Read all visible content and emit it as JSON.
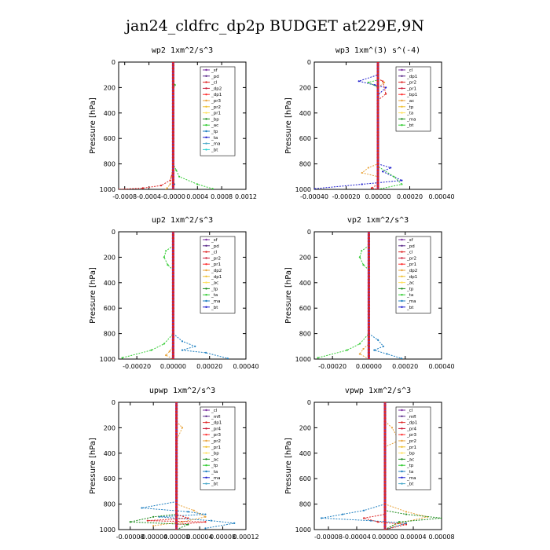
{
  "title": "jan24_cldfrc_dp2p  BUDGET at229E,9N",
  "chart_data": [
    {
      "type": "line",
      "title": "wp2  1xm^2/s^3",
      "ylabel": "Pressure [hPa]",
      "xlim": [
        -0.0009,
        0.0012
      ],
      "xticks": [
        -0.0008,
        -0.0004,
        0.0,
        0.0004,
        0.0008,
        0.0012
      ],
      "xticklabels": [
        "-0.0008",
        "-0.0004",
        "-0.0000",
        "0.0004",
        "0.0008",
        "0.0012"
      ],
      "ylim": [
        1000,
        0
      ],
      "yticks": [
        0,
        200,
        400,
        600,
        800,
        1000
      ],
      "legend": [
        "_sf",
        "_pd",
        "_cl",
        "_dp2",
        "_dp1",
        "_pr3",
        "_pr2",
        "_pr1",
        "_bp",
        "_ac",
        "_tp",
        "_ta",
        "_ma",
        "_bt"
      ],
      "series": [
        {
          "color": "#e8a33a",
          "points": [
            [
              0,
              0
            ],
            [
              0,
              800
            ],
            [
              -3e-05,
              900
            ],
            [
              -5e-05,
              960
            ],
            [
              -0.0001,
              990
            ],
            [
              -0.00012,
              1000
            ]
          ]
        },
        {
          "color": "#33cc33",
          "points": [
            [
              0,
              0
            ],
            [
              0,
              150
            ],
            [
              3e-05,
              180
            ],
            [
              0,
              220
            ],
            [
              0,
              800
            ],
            [
              5e-05,
              850
            ],
            [
              0.0001,
              900
            ],
            [
              0.0004,
              960
            ],
            [
              0.00065,
              995
            ]
          ]
        },
        {
          "color": "#dd2222",
          "points": [
            [
              0,
              0
            ],
            [
              0,
              850
            ],
            [
              -5e-05,
              930
            ],
            [
              -0.0002,
              970
            ],
            [
              -0.0005,
              990
            ],
            [
              -0.0009,
              1000
            ]
          ]
        },
        {
          "color": "#1e7fc0",
          "points": [
            [
              0,
              0
            ],
            [
              0,
              930
            ],
            [
              2e-05,
              960
            ],
            [
              0,
              1000
            ]
          ]
        },
        {
          "color": "#7b2fa0",
          "points": [
            [
              0,
              0
            ],
            [
              0,
              1000
            ]
          ]
        }
      ]
    },
    {
      "type": "line",
      "title": "wp3  1xm^(3) s^(-4)",
      "ylabel": "Pressure [hPa]",
      "xlim": [
        -0.0004,
        0.0004
      ],
      "xticks": [
        -0.0004,
        -0.0002,
        0.0,
        0.0002,
        0.0004
      ],
      "xticklabels": [
        "-0.00040",
        "-0.00020",
        "0.00000",
        "0.00020",
        "0.00040"
      ],
      "ylim": [
        1000,
        0
      ],
      "yticks": [
        0,
        200,
        400,
        600,
        800,
        1000
      ],
      "legend": [
        "_cl",
        "_dp1",
        "_pr2",
        "_pr1",
        "_bp1",
        "_ac",
        "_tp",
        "_ta",
        "_ma",
        "_bt"
      ],
      "series": [
        {
          "color": "#1e1ecc",
          "points": [
            [
              0,
              0
            ],
            [
              0,
              100
            ],
            [
              -0.00012,
              150
            ],
            [
              -2e-05,
              180
            ],
            [
              5e-05,
              200
            ],
            [
              0,
              260
            ],
            [
              0,
              800
            ],
            [
              8e-05,
              830
            ],
            [
              3e-05,
              860
            ],
            [
              0.00015,
              930
            ],
            [
              -0.0001,
              960
            ],
            [
              -0.0004,
              995
            ]
          ]
        },
        {
          "color": "#33cc33",
          "points": [
            [
              0,
              0
            ],
            [
              0,
              140
            ],
            [
              -6e-05,
              160
            ],
            [
              0,
              200
            ],
            [
              0,
              820
            ],
            [
              0.0001,
              900
            ],
            [
              0.00015,
              960
            ],
            [
              0,
              1000
            ]
          ]
        },
        {
          "color": "#e8a33a",
          "points": [
            [
              0,
              0
            ],
            [
              0,
              130
            ],
            [
              4e-05,
              160
            ],
            [
              0,
              200
            ],
            [
              0,
              800
            ],
            [
              -6e-05,
              830
            ],
            [
              -0.0001,
              870
            ],
            [
              0,
              900
            ],
            [
              0,
              1000
            ]
          ]
        },
        {
          "color": "#dd2222",
          "points": [
            [
              0,
              0
            ],
            [
              0,
              130
            ],
            [
              3e-05,
              150
            ],
            [
              5e-05,
              250
            ],
            [
              0,
              300
            ],
            [
              0,
              960
            ],
            [
              -4e-05,
              990
            ],
            [
              0,
              1000
            ]
          ]
        },
        {
          "color": "#7b2fa0",
          "points": [
            [
              0,
              0
            ],
            [
              0,
              1000
            ]
          ]
        }
      ]
    },
    {
      "type": "line",
      "title": "up2  1xm^2/s^3",
      "ylabel": "Pressure [hPa]",
      "xlim": [
        -0.0003,
        0.0004
      ],
      "xticks": [
        -0.0002,
        0.0,
        0.0002,
        0.0004
      ],
      "xticklabels": [
        "-0.00020",
        "0.00000",
        "0.00020",
        "0.00040"
      ],
      "ylim": [
        1000,
        0
      ],
      "yticks": [
        0,
        200,
        400,
        600,
        800,
        1000
      ],
      "legend": [
        "_sf",
        "_pd",
        "_cl",
        "_pr2",
        "_pr1",
        "_dp2",
        "_dp1",
        "_ac",
        "_tp",
        "_ta",
        "_ma",
        "_bt"
      ],
      "series": [
        {
          "color": "#33cc33",
          "points": [
            [
              0,
              0
            ],
            [
              0,
              110
            ],
            [
              -4e-05,
              150
            ],
            [
              -5e-05,
              200
            ],
            [
              -3e-05,
              260
            ],
            [
              0,
              300
            ],
            [
              0,
              800
            ],
            [
              -5e-05,
              880
            ],
            [
              -0.00012,
              930
            ],
            [
              -0.00028,
              990
            ]
          ]
        },
        {
          "color": "#1e7fc0",
          "points": [
            [
              0,
              0
            ],
            [
              0,
              800
            ],
            [
              5e-05,
              860
            ],
            [
              0.00012,
              900
            ],
            [
              5e-05,
              930
            ],
            [
              0.00018,
              950
            ],
            [
              0.0003,
              995
            ]
          ]
        },
        {
          "color": "#e8a33a",
          "points": [
            [
              0,
              0
            ],
            [
              0,
              900
            ],
            [
              -2e-05,
              940
            ],
            [
              -4e-05,
              970
            ],
            [
              0,
              1000
            ]
          ]
        },
        {
          "color": "#dd2222",
          "points": [
            [
              0,
              0
            ],
            [
              0,
              1000
            ]
          ]
        },
        {
          "color": "#7b2fa0",
          "points": [
            [
              0,
              0
            ],
            [
              0,
              1000
            ]
          ]
        }
      ]
    },
    {
      "type": "line",
      "title": "vp2  1xm^2/s^3",
      "ylabel": "Pressure [hPa]",
      "xlim": [
        -0.0003,
        0.0004
      ],
      "xticks": [
        -0.0002,
        0.0,
        0.0002,
        0.0004
      ],
      "xticklabels": [
        "-0.00020",
        "0.00000",
        "0.00020",
        "0.00040"
      ],
      "ylim": [
        1000,
        0
      ],
      "yticks": [
        0,
        200,
        400,
        600,
        800,
        1000
      ],
      "legend": [
        "_sf",
        "_pd",
        "_cl",
        "_pr2",
        "_pr1",
        "_dp2",
        "_dp1",
        "_ac",
        "_tp",
        "_ta",
        "_ma",
        "_bt"
      ],
      "series": [
        {
          "color": "#33cc33",
          "points": [
            [
              0,
              0
            ],
            [
              0,
              110
            ],
            [
              -4e-05,
              150
            ],
            [
              -5e-05,
              200
            ],
            [
              -3e-05,
              260
            ],
            [
              0,
              300
            ],
            [
              0,
              800
            ],
            [
              -5e-05,
              880
            ],
            [
              -0.00012,
              930
            ],
            [
              -0.00028,
              990
            ]
          ]
        },
        {
          "color": "#1e7fc0",
          "points": [
            [
              0,
              0
            ],
            [
              0,
              800
            ],
            [
              5e-05,
              850
            ],
            [
              8e-05,
              900
            ],
            [
              3e-05,
              930
            ],
            [
              0.0001,
              960
            ],
            [
              0.00018,
              995
            ]
          ]
        },
        {
          "color": "#e8a33a",
          "points": [
            [
              0,
              0
            ],
            [
              0,
              880
            ],
            [
              -3e-05,
              920
            ],
            [
              -5e-05,
              960
            ],
            [
              0,
              1000
            ]
          ]
        },
        {
          "color": "#dd2222",
          "points": [
            [
              0,
              0
            ],
            [
              0,
              1000
            ]
          ]
        },
        {
          "color": "#7b2fa0",
          "points": [
            [
              0,
              0
            ],
            [
              0,
              1000
            ]
          ]
        }
      ]
    },
    {
      "type": "line",
      "title": "upwp  1xm^2/s^3",
      "ylabel": "Pressure [hPa]",
      "xlim": [
        -0.0001,
        0.00012
      ],
      "xticks": [
        -8e-05,
        -4e-05,
        0.0,
        4e-05,
        8e-05,
        0.00012
      ],
      "xticklabels": [
        "-0.00008",
        "-0.00004",
        "0.00000",
        "0.00004",
        "0.00008",
        "0.00012"
      ],
      "ylim": [
        1000,
        0
      ],
      "yticks": [
        0,
        200,
        400,
        600,
        800,
        1000
      ],
      "legend": [
        "_cl",
        "_mfl",
        "_dp1",
        "_pr4",
        "_pr3",
        "_pr2",
        "_pr1",
        "_bp",
        "_ac",
        "_tp",
        "_ta",
        "_ma",
        "_bt"
      ],
      "series": [
        {
          "color": "#1e7fc0",
          "points": [
            [
              0,
              0
            ],
            [
              0,
              780
            ],
            [
              -6e-05,
              830
            ],
            [
              2e-05,
              860
            ],
            [
              5e-05,
              880
            ],
            [
              -3e-05,
              900
            ],
            [
              6e-05,
              930
            ],
            [
              0.0001,
              950
            ],
            [
              5e-05,
              990
            ]
          ]
        },
        {
          "color": "#e8a33a",
          "points": [
            [
              0,
              0
            ],
            [
              0,
              150
            ],
            [
              1e-05,
              200
            ],
            [
              0,
              300
            ],
            [
              0,
              800
            ],
            [
              3e-05,
              850
            ],
            [
              5e-05,
              900
            ],
            [
              1e-05,
              940
            ],
            [
              -4e-05,
              970
            ]
          ]
        },
        {
          "color": "#1a8a1a",
          "points": [
            [
              0,
              0
            ],
            [
              0,
              880
            ],
            [
              -4e-05,
              900
            ],
            [
              -8e-05,
              940
            ],
            [
              2e-05,
              960
            ],
            [
              0,
              1000
            ]
          ]
        },
        {
          "color": "#dd2222",
          "points": [
            [
              0,
              0
            ],
            [
              0,
              880
            ],
            [
              2e-05,
              910
            ],
            [
              -5e-05,
              930
            ],
            [
              5e-05,
              940
            ],
            [
              0,
              960
            ],
            [
              0,
              1000
            ]
          ]
        },
        {
          "color": "#7b2fa0",
          "points": [
            [
              0,
              0
            ],
            [
              0,
              1000
            ]
          ]
        }
      ]
    },
    {
      "type": "line",
      "title": "vpwp  1xm^2/s^3",
      "ylabel": "Pressure [hPa]",
      "xlim": [
        -0.0001,
        8e-05
      ],
      "xticks": [
        -8e-05,
        -4e-05,
        0.0,
        4e-05,
        8e-05
      ],
      "xticklabels": [
        "-0.00008",
        "-0.00004",
        "0.00000",
        "0.00004",
        "0.00008"
      ],
      "ylim": [
        1000,
        0
      ],
      "yticks": [
        0,
        200,
        400,
        600,
        800,
        1000
      ],
      "legend": [
        "_cl",
        "_mfl",
        "_dp1",
        "_pr4",
        "_pr3",
        "_pr2",
        "_pr1",
        "_bp",
        "_ac",
        "_tp",
        "_ta",
        "_ma",
        "_bt"
      ],
      "series": [
        {
          "color": "#1e7fc0",
          "points": [
            [
              0,
              0
            ],
            [
              0,
              800
            ],
            [
              -3e-05,
              850
            ],
            [
              -6e-05,
              880
            ],
            [
              -9e-05,
              910
            ],
            [
              -2e-05,
              930
            ],
            [
              3e-05,
              950
            ],
            [
              0,
              1000
            ]
          ]
        },
        {
          "color": "#e8a33a",
          "points": [
            [
              0,
              0
            ],
            [
              0,
              150
            ],
            [
              1e-05,
              200
            ],
            [
              2e-05,
              300
            ],
            [
              0,
              350
            ],
            [
              0,
              800
            ],
            [
              3e-05,
              860
            ],
            [
              6e-05,
              900
            ],
            [
              2e-05,
              950
            ],
            [
              0,
              1000
            ]
          ]
        },
        {
          "color": "#1a8a1a",
          "points": [
            [
              0,
              0
            ],
            [
              0,
              850
            ],
            [
              3e-05,
              880
            ],
            [
              8e-05,
              910
            ],
            [
              2e-05,
              940
            ],
            [
              0,
              1000
            ]
          ]
        },
        {
          "color": "#dd2222",
          "points": [
            [
              0,
              0
            ],
            [
              0,
              880
            ],
            [
              -3e-05,
              910
            ],
            [
              -1e-05,
              940
            ],
            [
              3e-05,
              960
            ],
            [
              0,
              1000
            ]
          ]
        },
        {
          "color": "#7b2fa0",
          "points": [
            [
              0,
              0
            ],
            [
              0,
              1000
            ]
          ]
        }
      ]
    }
  ]
}
